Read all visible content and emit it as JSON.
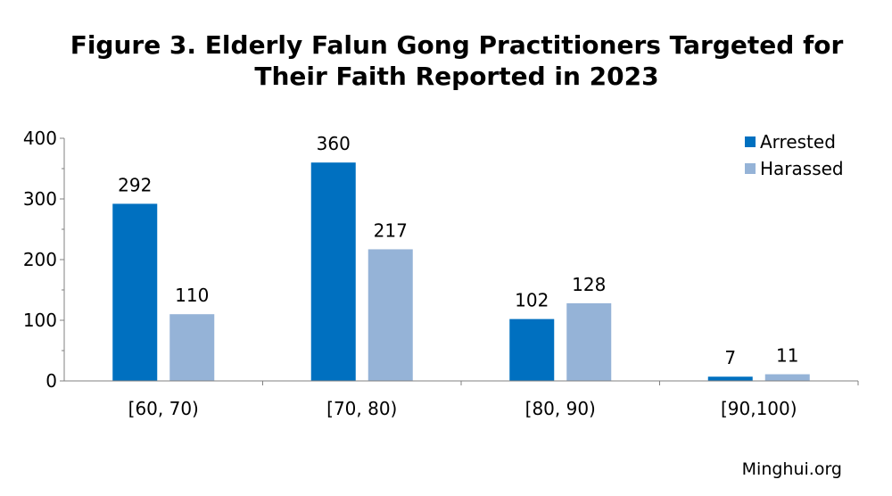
{
  "chart_data": {
    "type": "bar",
    "title_lines": [
      "Figure 3. Elderly Falun Gong Practitioners Targeted for",
      "Their Faith Reported in 2023"
    ],
    "categories": [
      "[60, 70)",
      "[70, 80)",
      "[80, 90)",
      "[90,100)"
    ],
    "series": [
      {
        "name": "Arrested",
        "color": "#0070C0",
        "values": [
          292,
          360,
          102,
          7
        ]
      },
      {
        "name": "Harassed",
        "color": "#95B3D7",
        "values": [
          110,
          217,
          128,
          11
        ]
      }
    ],
    "xlabel": "",
    "ylabel": "",
    "ylim": [
      0,
      400
    ],
    "yticks": [
      0,
      100,
      200,
      300,
      400
    ],
    "grid": false,
    "legend_position": "top-right",
    "source": "Minghui.org"
  }
}
